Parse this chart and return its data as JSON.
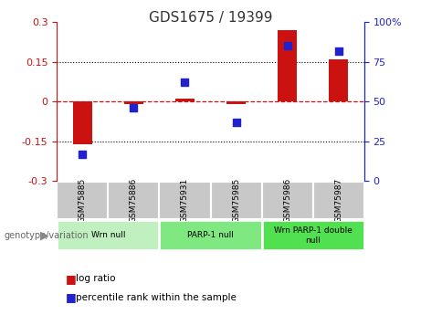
{
  "title": "GDS1675 / 19399",
  "samples": [
    "GSM75885",
    "GSM75886",
    "GSM75931",
    "GSM75985",
    "GSM75986",
    "GSM75987"
  ],
  "log_ratio": [
    -0.162,
    -0.008,
    0.01,
    -0.01,
    0.27,
    0.158
  ],
  "percentile_rank": [
    17,
    46,
    62,
    37,
    85,
    82
  ],
  "ylim_left": [
    -0.3,
    0.3
  ],
  "yticks_left": [
    -0.3,
    -0.15,
    0,
    0.15,
    0.3
  ],
  "yticks_right": [
    0,
    25,
    50,
    75,
    100
  ],
  "hlines_dotted": [
    -0.15,
    0.15
  ],
  "hline_zero": 0.0,
  "bar_color": "#cc1111",
  "dot_color": "#2222cc",
  "bar_width": 0.38,
  "sample_box_color": "#c8c8c8",
  "group_configs": [
    {
      "label": "Wrn null",
      "start": 0,
      "end": 1,
      "color": "#c0f0c0"
    },
    {
      "label": "PARP-1 null",
      "start": 2,
      "end": 3,
      "color": "#80e880"
    },
    {
      "label": "Wrn PARP-1 double\nnull",
      "start": 4,
      "end": 5,
      "color": "#50e050"
    }
  ],
  "legend_items": [
    {
      "label": "log ratio",
      "color": "#cc1111"
    },
    {
      "label": "percentile rank within the sample",
      "color": "#2222cc"
    }
  ],
  "genotype_label": "genotype/variation",
  "left_axis_color": "#cc1111",
  "right_axis_color": "#2222cc",
  "title_color": "#333333"
}
